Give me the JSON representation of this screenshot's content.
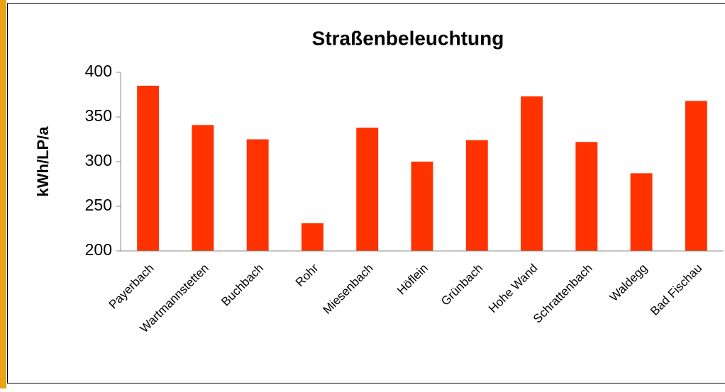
{
  "chart_data": {
    "type": "bar",
    "title": "Straßenbeleuchtung",
    "y_label": "kWh/LP/a",
    "categories": [
      "Payerbach",
      "Wartmannstetten",
      "Buchbach",
      "Rohr",
      "Miesenbach",
      "Höflein",
      "Grünbach",
      "Hohe Wand",
      "Schrattenbach",
      "Waldegg",
      "Bad Fischau"
    ],
    "values": [
      385,
      341,
      325,
      231,
      338,
      300,
      324,
      373,
      322,
      287,
      368
    ],
    "color": "#ff3300",
    "ylim": [
      200,
      400
    ],
    "yticks": [
      200,
      250,
      300,
      350,
      400
    ],
    "grid": false
  }
}
